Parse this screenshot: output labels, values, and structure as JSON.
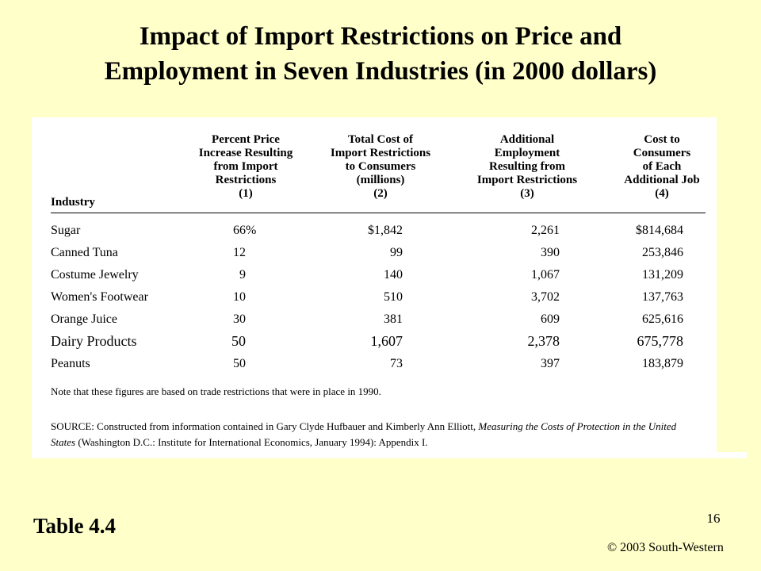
{
  "slide": {
    "title_line1": "Impact of Import Restrictions on Price and",
    "title_line2": "Employment in Seven Industries (in 2000 dollars)",
    "table_label": "Table 4.4",
    "page_number": "16",
    "copyright": "© 2003 South-Western"
  },
  "table": {
    "header_industry": "Industry",
    "columns": [
      {
        "lines": [
          "Percent Price",
          "Increase Resulting",
          "from Import",
          "Restrictions",
          "(1)"
        ]
      },
      {
        "lines": [
          "Total Cost of",
          "Import Restrictions",
          "to Consumers",
          "(millions)",
          "(2)"
        ]
      },
      {
        "lines": [
          "Additional",
          "Employment",
          "Resulting from",
          "Import Restrictions",
          "(3)"
        ]
      },
      {
        "lines": [
          "Cost to",
          "Consumers",
          "of Each",
          "Additional Job",
          "(4)"
        ]
      }
    ],
    "rows": [
      {
        "industry": "Sugar",
        "pct": "66",
        "pct_suffix": "%",
        "cost": "$1,842",
        "jobs": "2,261",
        "per_job": "$814,684"
      },
      {
        "industry": "Canned Tuna",
        "pct": "12",
        "pct_suffix": "",
        "cost": "99",
        "jobs": "390",
        "per_job": "253,846"
      },
      {
        "industry": "Costume Jewelry",
        "pct": "9",
        "pct_suffix": "",
        "cost": "140",
        "jobs": "1,067",
        "per_job": "131,209"
      },
      {
        "industry": "Women's Footwear",
        "pct": "10",
        "pct_suffix": "",
        "cost": "510",
        "jobs": "3,702",
        "per_job": "137,763"
      },
      {
        "industry": "Orange Juice",
        "pct": "30",
        "pct_suffix": "",
        "cost": "381",
        "jobs": "609",
        "per_job": "625,616"
      },
      {
        "industry": "Dairy Products",
        "pct": "50",
        "pct_suffix": "",
        "cost": "1,607",
        "jobs": "2,378",
        "per_job": "675,778"
      },
      {
        "industry": "Peanuts",
        "pct": "50",
        "pct_suffix": "",
        "cost": "73",
        "jobs": "397",
        "per_job": "183,879"
      }
    ],
    "note": "Note that these figures are based on trade restrictions that were in place in 1990.",
    "source_prefix": "SOURCE: Constructed from information contained in Gary Clyde Hufbauer and Kimberly Ann Elliott, ",
    "source_italic": "Measuring the Costs of Protection in the United States",
    "source_suffix": " (Washington D.C.: Institute for International Economics, January 1994): Appendix I."
  }
}
